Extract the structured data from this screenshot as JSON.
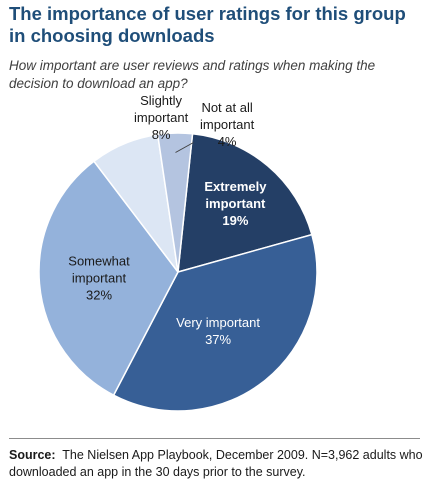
{
  "title": "The importance of user ratings for this group in choosing downloads",
  "subtitle": "How important are user reviews and ratings when making the decision to download an app?",
  "source": {
    "label": "Source:",
    "text": "The Nielsen App Playbook, December 2009. N=3,962 adults who downloaded an app in the 30 days prior to the survey."
  },
  "chart_data": {
    "type": "pie",
    "slices": [
      {
        "label": [
          "Extremely",
          "important"
        ],
        "value_label": "19%",
        "value": 19,
        "color": "#243f66"
      },
      {
        "label": [
          "Very important"
        ],
        "value_label": "37%",
        "value": 37,
        "color": "#375f96"
      },
      {
        "label": [
          "Somewhat",
          "important"
        ],
        "value_label": "32%",
        "value": 32,
        "color": "#94b2db"
      },
      {
        "label": [
          "Slightly",
          "important"
        ],
        "value_label": "8%",
        "value": 8,
        "color": "#dce6f4"
      },
      {
        "label": [
          "Not at all",
          "important"
        ],
        "value_label": "4%",
        "value": 4,
        "color": "#b4c4e0"
      }
    ]
  }
}
